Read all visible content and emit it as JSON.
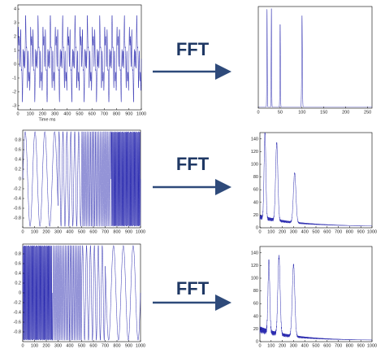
{
  "panels": [
    {
      "time_plot": {
        "xlim": [
          0,
          1000
        ],
        "ylim": [
          -3.3,
          4.3
        ],
        "xticks": [
          0,
          100,
          200,
          300,
          400,
          500,
          600,
          700,
          800,
          900,
          1000
        ],
        "yticks": [
          -3,
          -2,
          -1,
          0,
          1,
          2,
          3,
          4
        ],
        "xlabel": "Time ms"
      },
      "arrow_label": "FFT",
      "spectrum_plot": {
        "xlim": [
          0,
          260
        ],
        "ylim": [
          0,
          1
        ],
        "xticks": [
          0,
          50,
          100,
          150,
          200,
          250
        ],
        "yticks": []
      }
    },
    {
      "time_plot": {
        "xlim": [
          0,
          1000
        ],
        "ylim": [
          -1,
          1
        ],
        "xticks": [
          0,
          100,
          200,
          300,
          400,
          500,
          600,
          700,
          800,
          900,
          1000
        ],
        "yticks": [
          -0.8,
          -0.6,
          -0.4,
          -0.2,
          0,
          0.2,
          0.4,
          0.6,
          0.8
        ]
      },
      "arrow_label": "FFT",
      "spectrum_plot": {
        "xlim": [
          0,
          1000
        ],
        "ylim": [
          0,
          150
        ],
        "xticks": [
          0,
          100,
          200,
          300,
          400,
          500,
          600,
          700,
          800,
          900,
          1000
        ],
        "yticks": [
          0,
          20,
          40,
          60,
          80,
          100,
          120,
          140
        ]
      }
    },
    {
      "time_plot": {
        "xlim": [
          0,
          1000
        ],
        "ylim": [
          -1,
          1
        ],
        "xticks": [
          0,
          100,
          200,
          300,
          400,
          500,
          600,
          700,
          800,
          900,
          1000
        ],
        "yticks": [
          -0.8,
          -0.6,
          -0.4,
          -0.2,
          0,
          0.2,
          0.4,
          0.6,
          0.8
        ]
      },
      "arrow_label": "FFT",
      "spectrum_plot": {
        "xlim": [
          0,
          1000
        ],
        "ylim": [
          0,
          150
        ],
        "xticks": [
          0,
          100,
          200,
          300,
          400,
          500,
          600,
          700,
          800,
          900,
          1000
        ],
        "yticks": [
          0,
          20,
          40,
          60,
          80,
          100,
          120,
          140
        ]
      }
    }
  ]
}
